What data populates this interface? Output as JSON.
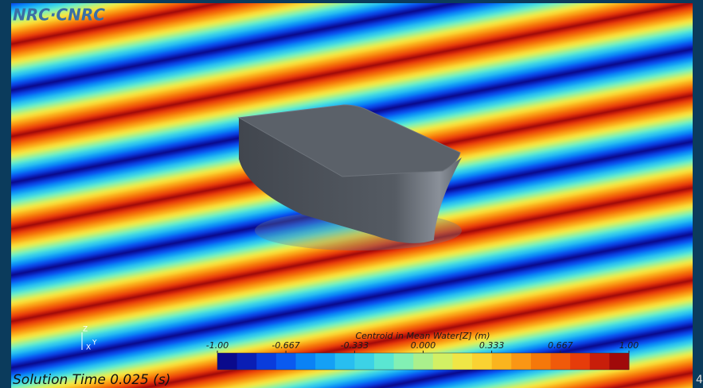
{
  "logo": "NRC·CNRC",
  "axes_triad": {
    "z": "Z",
    "x": "X",
    "y": "Y"
  },
  "colorbar": {
    "title": "Centroid in Mean Water[Z] (m)",
    "range": [
      -1,
      1
    ],
    "ticks": [
      {
        "value": -1,
        "label": "-1.00"
      },
      -0.667,
      -0.333,
      {
        "value": 0,
        "label": "0.000"
      },
      0.333,
      0.667,
      {
        "value": 1,
        "label": "1.00"
      }
    ],
    "colors": [
      "#0a0a8c",
      "#0a1eb4",
      "#0a3cdc",
      "#0a5af0",
      "#0a82f5",
      "#14a0f5",
      "#28bef0",
      "#3cd2e6",
      "#5ae6d2",
      "#82f0b4",
      "#aaf08c",
      "#d2f064",
      "#f0e646",
      "#fad232",
      "#fab41e",
      "#fa9614",
      "#f5780a",
      "#f05a0a",
      "#e63c0a",
      "#c81e0a",
      "#a00a0a"
    ]
  },
  "solution_time": "Solution Time 0.025 (s)",
  "edge_mark": "4"
}
